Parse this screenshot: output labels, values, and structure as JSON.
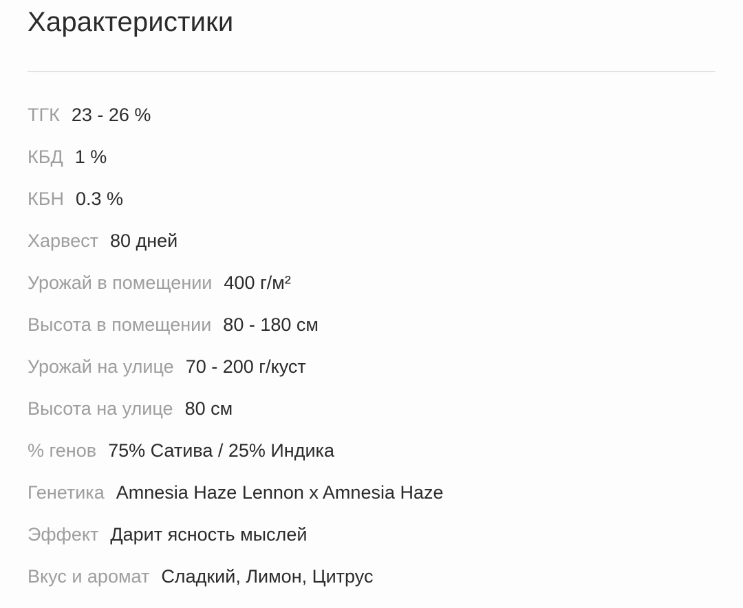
{
  "section": {
    "title": "Характеристики"
  },
  "specs": [
    {
      "label": "ТГК",
      "value": "23 - 26 %"
    },
    {
      "label": "КБД",
      "value": "1 %"
    },
    {
      "label": "КБН",
      "value": "0.3 %"
    },
    {
      "label": "Харвест",
      "value": "80 дней"
    },
    {
      "label": "Урожай в помещении",
      "value": "400 г/м²"
    },
    {
      "label": "Высота в помещении",
      "value": "80 - 180 см"
    },
    {
      "label": "Урожай на улице",
      "value": "70 - 200 г/куст"
    },
    {
      "label": "Высота на улице",
      "value": "80 см"
    },
    {
      "label": "% генов",
      "value": "75% Сатива / 25% Индика"
    },
    {
      "label": "Генетика",
      "value": "Amnesia Haze Lennon x Amnesia Haze"
    },
    {
      "label": "Эффект",
      "value": "Дарит ясность мыслей"
    },
    {
      "label": "Вкус и аромат",
      "value": "Сладкий, Лимон, Цитрус"
    }
  ],
  "colors": {
    "background": "#fdfdfd",
    "title_text": "#2b2b2b",
    "label_text": "#9e9e9e",
    "value_text": "#2b2b2b",
    "divider": "#e2e2e2"
  }
}
